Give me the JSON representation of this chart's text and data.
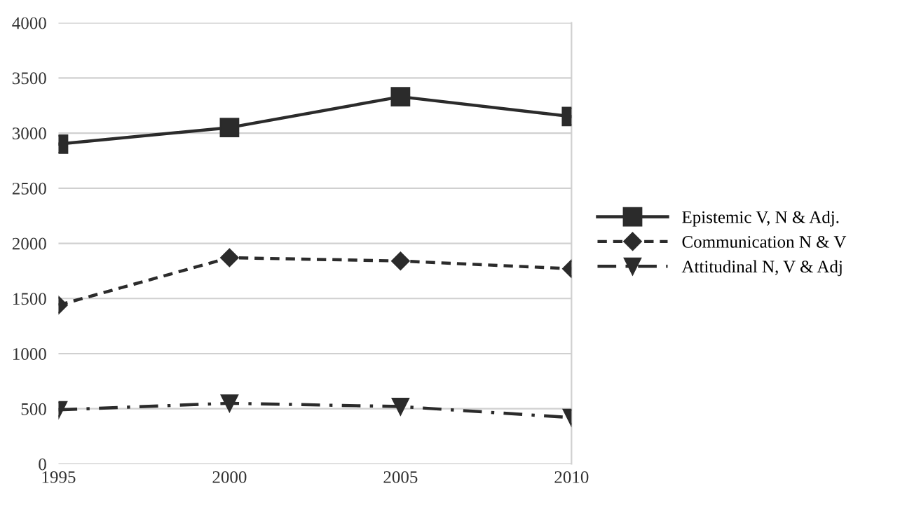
{
  "chart_data": {
    "type": "line",
    "categories": [
      "1995",
      "2000",
      "2005",
      "2010"
    ],
    "series": [
      {
        "name": "Epistemic V, N & Adj.",
        "color": "#2b2b2b",
        "marker": "square",
        "line_style": "solid",
        "values": [
          2900,
          3050,
          3330,
          3150
        ]
      },
      {
        "name": "Communication N & V",
        "color": "#2b2b2b",
        "marker": "diamond",
        "line_style": "dashed",
        "values": [
          1440,
          1870,
          1840,
          1770
        ]
      },
      {
        "name": "Attitudinal N, V & Adj",
        "color": "#2b2b2b",
        "marker": "triangle",
        "line_style": "dashdot",
        "values": [
          490,
          550,
          520,
          420
        ]
      }
    ],
    "ylim": [
      0,
      4000
    ],
    "yticks": [
      0,
      500,
      1000,
      1500,
      2000,
      2500,
      3000,
      3500,
      4000
    ],
    "grid": "y",
    "legend": "right"
  }
}
